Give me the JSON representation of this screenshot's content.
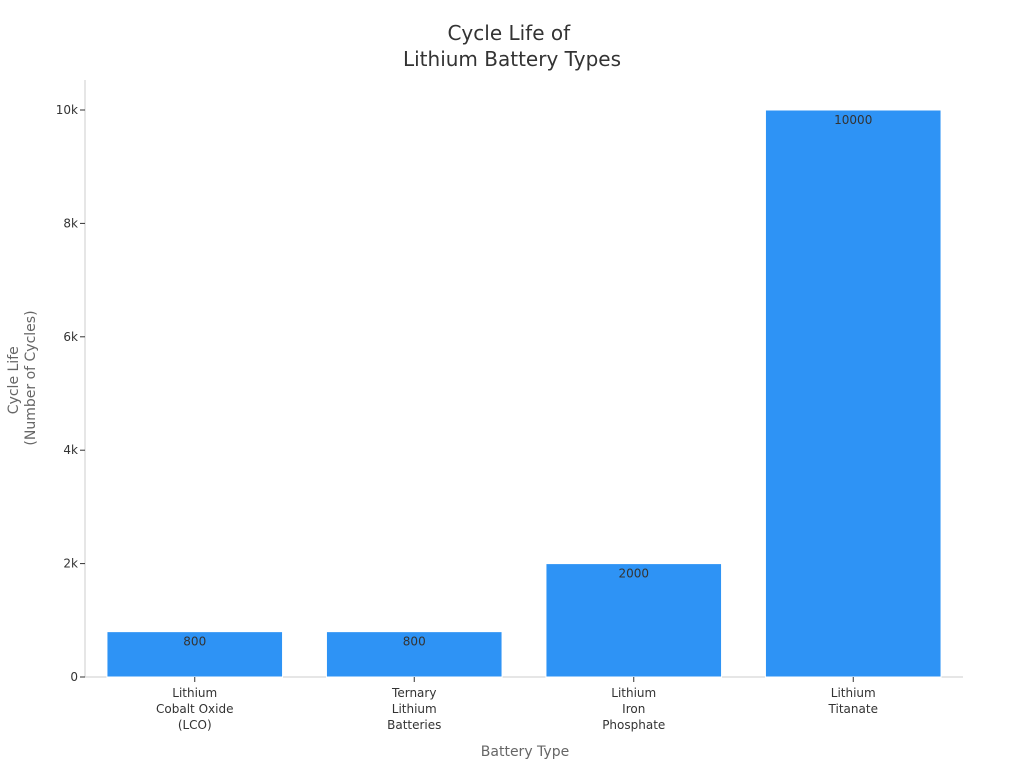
{
  "chart_data": {
    "type": "bar",
    "title_lines": [
      "Cycle Life of",
      "Lithium Battery Types"
    ],
    "xlabel": "Battery Type",
    "ylabel_lines": [
      "Cycle Life",
      "(Number of Cycles)"
    ],
    "categories": [
      [
        "Lithium",
        "Cobalt Oxide",
        "(LCO)"
      ],
      [
        "Ternary",
        "Lithium",
        "Batteries"
      ],
      [
        "Lithium",
        "Iron",
        "Phosphate"
      ],
      [
        "Lithium",
        "Titanate"
      ]
    ],
    "values": [
      800,
      800,
      2000,
      10000
    ],
    "data_labels": [
      "800",
      "800",
      "2000",
      "10000"
    ],
    "ylim": [
      0,
      10500
    ],
    "yticks": [
      0,
      2000,
      4000,
      6000,
      8000,
      10000
    ],
    "ytick_labels": [
      "0",
      "2k",
      "4k",
      "6k",
      "8k",
      "10k"
    ],
    "bar_color": "#2e93f5",
    "grid": false,
    "legend": "none"
  }
}
